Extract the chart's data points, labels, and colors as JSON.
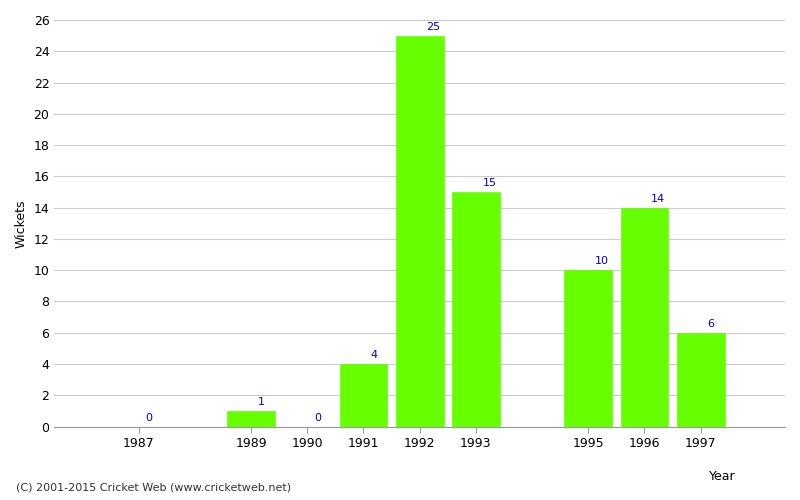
{
  "years": [
    1987,
    1989,
    1990,
    1991,
    1992,
    1993,
    1995,
    1996,
    1997
  ],
  "wickets": [
    0,
    1,
    0,
    4,
    25,
    15,
    10,
    14,
    6
  ],
  "bar_color": "#66ff00",
  "bar_edge_color": "#66ff00",
  "label_color": "#0000cc",
  "xlabel": "Year",
  "ylabel": "Wickets",
  "ylim": [
    0,
    26
  ],
  "yticks": [
    0,
    2,
    4,
    6,
    8,
    10,
    12,
    14,
    16,
    18,
    20,
    22,
    24,
    26
  ],
  "bg_color": "#ffffff",
  "grid_color": "#cccccc",
  "footer": "(C) 2001-2015 Cricket Web (www.cricketweb.net)",
  "label_fontsize": 8,
  "axis_label_fontsize": 9,
  "tick_fontsize": 9,
  "bar_width": 0.85,
  "xlim": [
    1985.5,
    1998.5
  ]
}
